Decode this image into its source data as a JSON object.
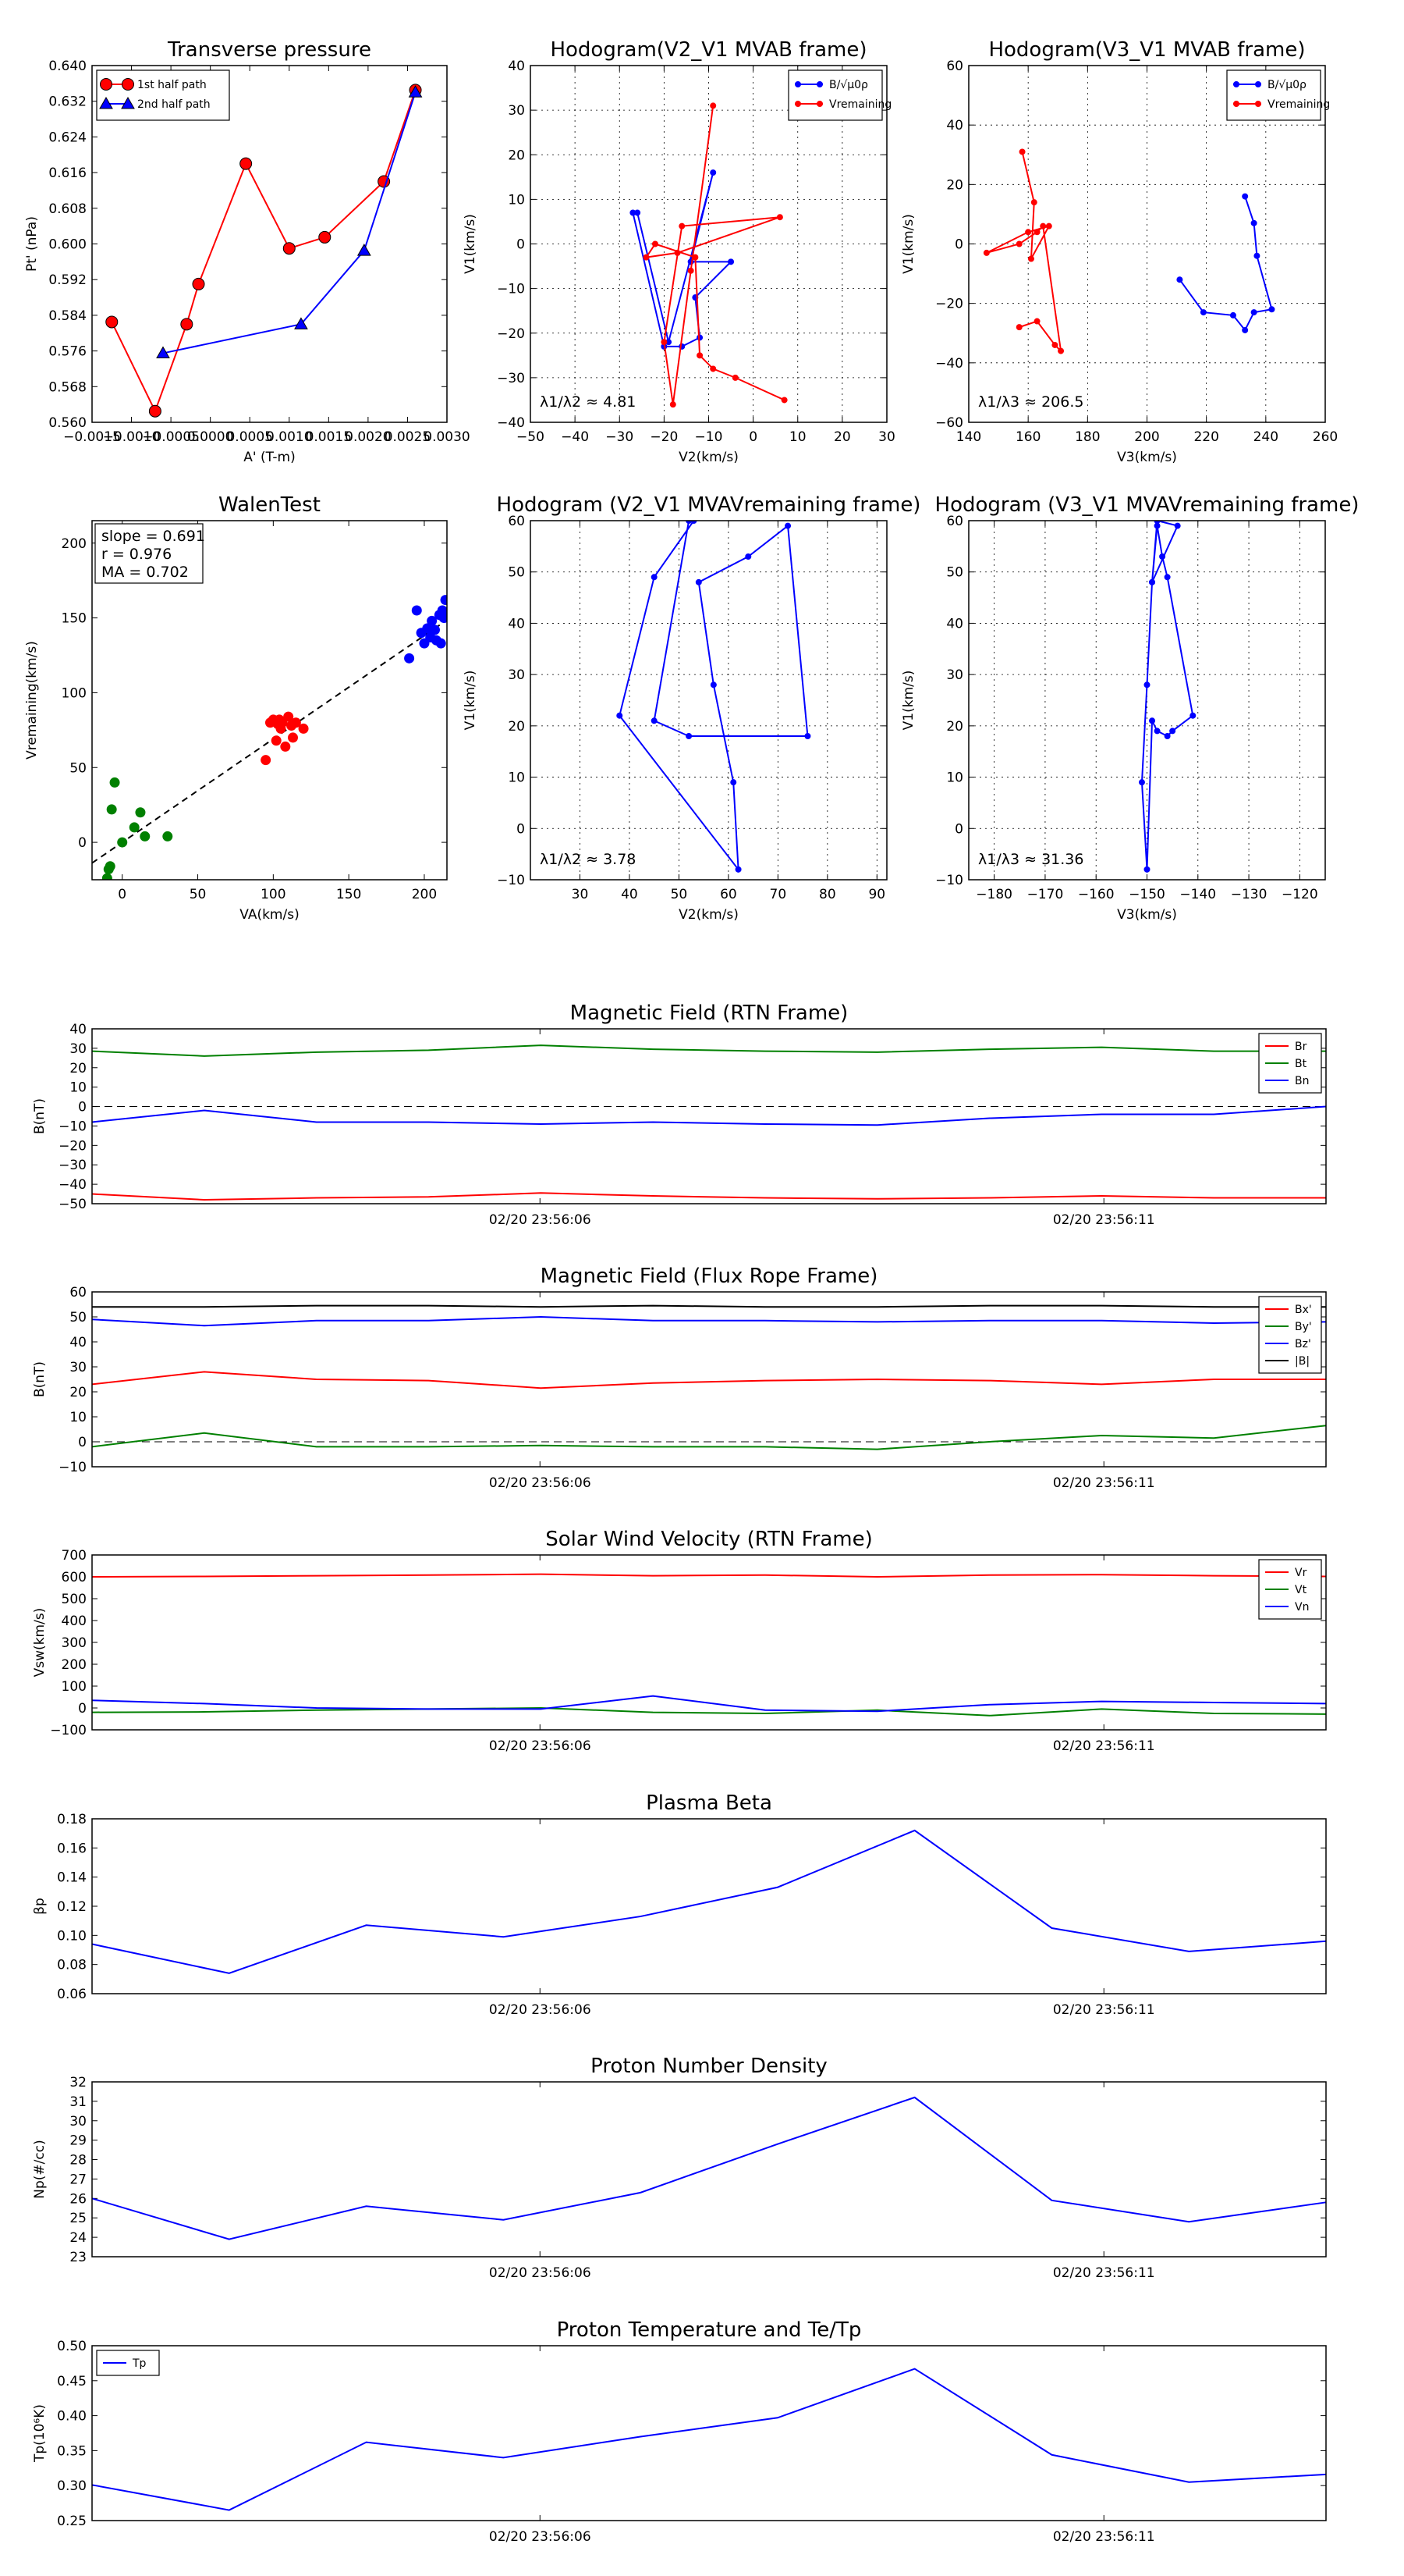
{
  "chart_data": [
    {
      "id": "tp",
      "type": "line",
      "title": "Transverse pressure",
      "xlabel": "A' (T-m)",
      "ylabel": "Pt' (nPa)",
      "xlim": [
        -0.0015,
        0.003
      ],
      "ylim": [
        0.56,
        0.64
      ],
      "xticks": [
        -0.0015,
        -0.001,
        -0.0005,
        0,
        0.0005,
        0.001,
        0.0015,
        0.002,
        0.0025,
        0.003
      ],
      "xticklabels": [
        "−0.0015",
        "−0.0010",
        "−0.0005",
        "0.0000",
        "0.0005",
        "0.0010",
        "0.0015",
        "0.0020",
        "0.0025",
        "0.0030"
      ],
      "yticks": [
        0.56,
        0.568,
        0.576,
        0.584,
        0.592,
        0.6,
        0.608,
        0.616,
        0.624,
        0.632,
        0.64
      ],
      "yticklabels": [
        "0.560",
        "0.568",
        "0.576",
        "0.584",
        "0.592",
        "0.600",
        "0.608",
        "0.616",
        "0.624",
        "0.632",
        "0.640"
      ],
      "grid": false,
      "legend": "upper left",
      "series": [
        {
          "name": "1st half path",
          "color": "#ff0000",
          "marker": "circle",
          "x": [
            -0.00125,
            -0.0007,
            -0.0003,
            -0.00015,
            0.00045,
            0.001,
            0.00145,
            0.0022,
            0.0026
          ],
          "y": [
            0.5825,
            0.5625,
            0.582,
            0.591,
            0.618,
            0.599,
            0.6015,
            0.614,
            0.6345
          ]
        },
        {
          "name": "2nd half path",
          "color": "#0000ff",
          "marker": "triangle",
          "x": [
            -0.0006,
            0.00115,
            0.00195,
            0.0026
          ],
          "y": [
            0.5755,
            0.582,
            0.5985,
            0.634
          ]
        }
      ]
    },
    {
      "id": "h1",
      "type": "line",
      "title": "Hodogram(V2_V1 MVAB frame)",
      "xlabel": "V2(km/s)",
      "ylabel": "V1(km/s)",
      "xlim": [
        -50,
        30
      ],
      "ylim": [
        -40,
        40
      ],
      "xticks": [
        -50,
        -40,
        -30,
        -20,
        -10,
        0,
        10,
        20,
        30
      ],
      "yticks": [
        -40,
        -30,
        -20,
        -10,
        0,
        10,
        20,
        30,
        40
      ],
      "grid": true,
      "legend": "upper right",
      "annotation": "λ1/λ2 ≈ 4.81",
      "series": [
        {
          "name": "B/√μ0ρ",
          "color": "#0000ff",
          "marker": "dot",
          "x": [
            -27,
            -20,
            -16,
            -12,
            -13,
            -5,
            -14,
            -9,
            -19,
            -26
          ],
          "y": [
            7,
            -23,
            -23,
            -21,
            -12,
            -4,
            -4,
            16,
            -22,
            7
          ]
        },
        {
          "name": "Vremaining",
          "color": "#ff0000",
          "marker": "dot",
          "x": [
            -9,
            -14,
            -18,
            -20,
            -16,
            6,
            -17,
            -24,
            -22,
            -13,
            -12,
            -9,
            -4,
            7
          ],
          "y": [
            31,
            -6,
            -36,
            -22,
            4,
            6,
            -2,
            -3,
            0,
            -3,
            -25,
            -28,
            -30,
            -35
          ]
        }
      ]
    },
    {
      "id": "h2",
      "type": "line",
      "title": "Hodogram(V3_V1 MVAB frame)",
      "xlabel": "V3(km/s)",
      "ylabel": "V1(km/s)",
      "xlim": [
        140,
        260
      ],
      "ylim": [
        -60,
        60
      ],
      "xticks": [
        140,
        160,
        180,
        200,
        220,
        240,
        260
      ],
      "yticks": [
        -60,
        -40,
        -20,
        0,
        20,
        40,
        60
      ],
      "grid": true,
      "legend": "upper right",
      "annotation": "λ1/λ3 ≈ 206.5",
      "series": [
        {
          "name": "B/√μ0ρ",
          "color": "#0000ff",
          "marker": "dot",
          "x": [
            233,
            236,
            237,
            242,
            236,
            233,
            229,
            219,
            211
          ],
          "y": [
            16,
            7,
            -4,
            -22,
            -23,
            -29,
            -24,
            -23,
            -12
          ]
        },
        {
          "name": "Vremaining",
          "color": "#ff0000",
          "marker": "dot",
          "x": [
            158,
            162,
            161,
            167,
            160,
            146,
            157,
            163,
            165,
            171,
            169,
            163,
            157
          ],
          "y": [
            31,
            14,
            -5,
            6,
            4,
            -3,
            0,
            4,
            6,
            -36,
            -34,
            -26,
            -28
          ]
        }
      ]
    },
    {
      "id": "walen",
      "type": "scatter",
      "title": "WalenTest",
      "xlabel": "VA(km/s)",
      "ylabel": "Vremaining(km/s)",
      "xlim": [
        -20,
        215
      ],
      "ylim": [
        -25,
        215
      ],
      "xticks": [
        0,
        50,
        100,
        150,
        200
      ],
      "yticks": [
        0,
        50,
        100,
        150,
        200
      ],
      "grid": false,
      "stats": [
        "slope = 0.691",
        "r = 0.976",
        "MA = 0.702"
      ],
      "fit": {
        "slope": 0.691,
        "intercept": 0
      },
      "series": [
        {
          "color": "#008000",
          "x": [
            -10,
            -9,
            -8,
            -7,
            -5,
            0,
            8,
            12,
            15,
            30
          ],
          "y": [
            -24,
            -18,
            -16,
            22,
            40,
            0,
            10,
            20,
            4,
            4
          ]
        },
        {
          "color": "#ff0000",
          "x": [
            95,
            98,
            100,
            102,
            103,
            104,
            105,
            106,
            108,
            110,
            112,
            113,
            115,
            120
          ],
          "y": [
            55,
            80,
            82,
            68,
            79,
            82,
            76,
            80,
            64,
            84,
            78,
            70,
            80,
            76
          ]
        },
        {
          "color": "#0000ff",
          "x": [
            190,
            195,
            198,
            200,
            202,
            204,
            205,
            207,
            208,
            210,
            211,
            212,
            213,
            214
          ],
          "y": [
            123,
            155,
            140,
            133,
            143,
            137,
            148,
            142,
            135,
            152,
            133,
            155,
            150,
            162
          ]
        }
      ]
    },
    {
      "id": "h3",
      "type": "line",
      "title": "Hodogram (V2_V1 MVAVremaining frame)",
      "xlabel": "V2(km/s)",
      "ylabel": "V1(km/s)",
      "xlim": [
        20,
        92
      ],
      "ylim": [
        -10,
        60
      ],
      "xticks": [
        30,
        40,
        50,
        60,
        70,
        80,
        90
      ],
      "yticks": [
        -10,
        0,
        10,
        20,
        30,
        40,
        50,
        60
      ],
      "grid": true,
      "annotation": "λ1/λ2 ≈ 3.78",
      "series": [
        {
          "color": "#0000ff",
          "marker": "dot",
          "x": [
            53,
            45,
            38,
            62,
            61,
            57,
            54,
            64,
            72,
            76,
            52,
            45,
            52
          ],
          "y": [
            60,
            49,
            22,
            -8,
            9,
            28,
            48,
            53,
            59,
            18,
            18,
            21,
            60
          ]
        }
      ]
    },
    {
      "id": "h4",
      "type": "line",
      "title": "Hodogram (V3_V1 MVAVremaining frame)",
      "xlabel": "V3(km/s)",
      "ylabel": "V1(km/s)",
      "xlim": [
        -185,
        -115
      ],
      "ylim": [
        -10,
        60
      ],
      "xticks": [
        -180,
        -170,
        -160,
        -150,
        -140,
        -130,
        -120
      ],
      "xticklabels": [
        "−180",
        "−170",
        "−160",
        "−150",
        "−140",
        "−130",
        "−120"
      ],
      "yticks": [
        -10,
        0,
        10,
        20,
        30,
        40,
        50,
        60
      ],
      "grid": true,
      "annotation": "λ1/λ3 ≈ 31.36",
      "series": [
        {
          "color": "#0000ff",
          "marker": "dot",
          "x": [
            -148,
            -149,
            -150,
            -151,
            -150,
            -149,
            -148,
            -146,
            -145,
            -141,
            -146,
            -147,
            -148,
            -149,
            -144,
            -148
          ],
          "y": [
            60,
            48,
            28,
            9,
            -8,
            21,
            19,
            18,
            19,
            22,
            49,
            53,
            59,
            48,
            59,
            60
          ]
        }
      ]
    },
    {
      "id": "mf",
      "type": "line",
      "title": "Magnetic Field (RTN Frame)",
      "ylabel": "B(nT)",
      "ylim": [
        -50,
        40
      ],
      "yticks": [
        -50,
        -40,
        -30,
        -20,
        -10,
        0,
        10,
        20,
        30,
        40
      ],
      "xticklabels": [
        "02/20 23:56:06",
        "02/20 23:56:11"
      ],
      "zero_line": true,
      "legend": "upper right",
      "series": [
        {
          "name": "Br",
          "color": "#ff0000",
          "values": [
            -45,
            -48,
            -47,
            -46.5,
            -44.5,
            -46,
            -47,
            -47.5,
            -47,
            -46,
            -47,
            -47
          ]
        },
        {
          "name": "Bt",
          "color": "#008000",
          "values": [
            28.5,
            26,
            28,
            29,
            31.5,
            29.5,
            28.5,
            28,
            29.5,
            30.5,
            28.5,
            28.5
          ]
        },
        {
          "name": "Bn",
          "color": "#0000ff",
          "values": [
            -8,
            -2,
            -8,
            -8,
            -9,
            -8,
            -9,
            -9.5,
            -6,
            -4,
            -4,
            0
          ]
        }
      ]
    },
    {
      "id": "mffr",
      "type": "line",
      "title": "Magnetic Field (Flux Rope Frame)",
      "ylabel": "B(nT)",
      "ylim": [
        -10,
        60
      ],
      "yticks": [
        -10,
        0,
        10,
        20,
        30,
        40,
        50,
        60
      ],
      "xticklabels": [
        "02/20 23:56:06",
        "02/20 23:56:11"
      ],
      "zero_line": true,
      "legend": "upper right",
      "series": [
        {
          "name": "Bx'",
          "color": "#ff0000",
          "values": [
            23,
            28,
            25,
            24.5,
            21.5,
            23.5,
            24.5,
            25,
            24.5,
            23,
            25,
            25
          ]
        },
        {
          "name": "By'",
          "color": "#008000",
          "values": [
            -2,
            3.5,
            -2,
            -2,
            -1.5,
            -2,
            -2,
            -3,
            0,
            2.5,
            1.5,
            6.5
          ]
        },
        {
          "name": "Bz'",
          "color": "#0000ff",
          "values": [
            49,
            46.5,
            48.5,
            48.5,
            50,
            48.5,
            48.5,
            48,
            48.5,
            48.5,
            47.5,
            48
          ]
        },
        {
          "name": "|B|",
          "color": "#000000",
          "values": [
            54,
            54,
            54.5,
            54.5,
            54,
            54.5,
            54,
            54,
            54.5,
            54.5,
            54,
            54
          ]
        }
      ]
    },
    {
      "id": "sw",
      "type": "line",
      "title": "Solar Wind Velocity (RTN Frame)",
      "ylabel": "Vsw(km/s)",
      "ylim": [
        -100,
        700
      ],
      "yticks": [
        -100,
        0,
        100,
        200,
        300,
        400,
        500,
        600,
        700
      ],
      "xticklabels": [
        "02/20 23:56:06",
        "02/20 23:56:11"
      ],
      "legend": "upper right",
      "series": [
        {
          "name": "Vr",
          "color": "#ff0000",
          "values": [
            600,
            602,
            605,
            608,
            612,
            605,
            608,
            600,
            608,
            610,
            605,
            602
          ]
        },
        {
          "name": "Vt",
          "color": "#008000",
          "values": [
            -20,
            -18,
            -10,
            -5,
            0,
            -20,
            -25,
            -10,
            -35,
            -5,
            -25,
            -28
          ]
        },
        {
          "name": "Vn",
          "color": "#0000ff",
          "values": [
            35,
            20,
            0,
            -5,
            -5,
            55,
            -10,
            -15,
            15,
            30,
            25,
            20
          ]
        }
      ]
    },
    {
      "id": "beta",
      "type": "line",
      "title": "Plasma Beta",
      "ylabel": "βp",
      "ylim": [
        0.06,
        0.18
      ],
      "yticks": [
        0.06,
        0.08,
        0.1,
        0.12,
        0.14,
        0.16,
        0.18
      ],
      "yticklabels": [
        "0.06",
        "0.08",
        "0.10",
        "0.12",
        "0.14",
        "0.16",
        "0.18"
      ],
      "xticklabels": [
        "02/20 23:56:06",
        "02/20 23:56:11"
      ],
      "series": [
        {
          "color": "#0000ff",
          "values": [
            0.094,
            0.074,
            0.107,
            0.099,
            0.113,
            0.133,
            0.172,
            0.105,
            0.089,
            0.096
          ]
        }
      ]
    },
    {
      "id": "np",
      "type": "line",
      "title": "Proton Number Density",
      "ylabel": "Np(#/cc)",
      "ylim": [
        23,
        32
      ],
      "yticks": [
        23,
        24,
        25,
        26,
        27,
        28,
        29,
        30,
        31,
        32
      ],
      "xticklabels": [
        "02/20 23:56:06",
        "02/20 23:56:11"
      ],
      "series": [
        {
          "color": "#0000ff",
          "values": [
            26,
            23.9,
            25.6,
            24.9,
            26.3,
            28.8,
            31.2,
            25.9,
            24.8,
            25.8
          ]
        }
      ]
    },
    {
      "id": "tpr",
      "type": "line",
      "title": "Proton Temperature and Te/Tp",
      "ylabel": "Tp(10⁶K)",
      "ylim": [
        0.25,
        0.5
      ],
      "yticks": [
        0.25,
        0.3,
        0.35,
        0.4,
        0.45,
        0.5
      ],
      "yticklabels": [
        "0.25",
        "0.30",
        "0.35",
        "0.40",
        "0.45",
        "0.50"
      ],
      "xticklabels": [
        "02/20 23:56:06",
        "02/20 23:56:11"
      ],
      "legend": "upper left",
      "series": [
        {
          "name": "Tp",
          "color": "#0000ff",
          "values": [
            0.301,
            0.265,
            0.362,
            0.34,
            0.37,
            0.397,
            0.467,
            0.344,
            0.305,
            0.316
          ]
        }
      ]
    }
  ]
}
